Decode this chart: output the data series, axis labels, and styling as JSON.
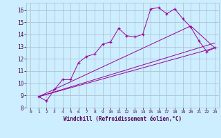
{
  "xlabel": "Windchill (Refroidissement éolien,°C)",
  "background_color": "#cceeff",
  "grid_color": "#aabbcc",
  "line_color": "#990099",
  "xlim": [
    -0.5,
    23.5
  ],
  "ylim": [
    8.0,
    16.6
  ],
  "xticks": [
    0,
    1,
    2,
    3,
    4,
    5,
    6,
    7,
    8,
    9,
    10,
    11,
    12,
    13,
    14,
    15,
    16,
    17,
    18,
    19,
    20,
    21,
    22,
    23
  ],
  "yticks": [
    8,
    9,
    10,
    11,
    12,
    13,
    14,
    15,
    16
  ],
  "series": [
    {
      "x": [
        1,
        2,
        3,
        4,
        5,
        6,
        7,
        8,
        9,
        10,
        11,
        12,
        13,
        14,
        15,
        16,
        17,
        18,
        19,
        20,
        21,
        22,
        23
      ],
      "y": [
        8.9,
        8.55,
        9.5,
        10.3,
        10.3,
        11.7,
        12.2,
        12.4,
        13.2,
        13.4,
        14.5,
        13.9,
        13.8,
        14.0,
        16.1,
        16.2,
        15.7,
        16.1,
        15.3,
        14.6,
        13.5,
        12.6,
        12.9
      ],
      "marker": true
    },
    {
      "x": [
        1,
        23
      ],
      "y": [
        8.9,
        12.9
      ],
      "marker": false
    },
    {
      "x": [
        1,
        23
      ],
      "y": [
        8.9,
        13.3
      ],
      "marker": false
    },
    {
      "x": [
        1,
        20,
        23
      ],
      "y": [
        8.9,
        14.7,
        12.9
      ],
      "marker": false
    }
  ]
}
